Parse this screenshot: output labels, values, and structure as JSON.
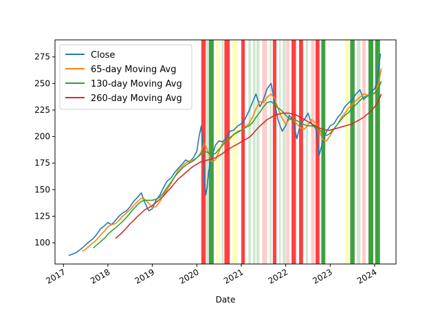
{
  "chart_data": {
    "type": "line",
    "xlabel": "Date",
    "ylabel": "",
    "title": "",
    "xlim": [
      2016.81,
      2024.48
    ],
    "ylim": [
      80,
      291
    ],
    "x_ticks": [
      {
        "value": 2017,
        "label": "2017"
      },
      {
        "value": 2018,
        "label": "2018"
      },
      {
        "value": 2019,
        "label": "2019"
      },
      {
        "value": 2020,
        "label": "2020"
      },
      {
        "value": 2021,
        "label": "2021"
      },
      {
        "value": 2022,
        "label": "2022"
      },
      {
        "value": 2023,
        "label": "2023"
      },
      {
        "value": 2024,
        "label": "2024"
      }
    ],
    "y_ticks": [
      {
        "value": 100,
        "label": "100"
      },
      {
        "value": 125,
        "label": "125"
      },
      {
        "value": 150,
        "label": "150"
      },
      {
        "value": 175,
        "label": "175"
      },
      {
        "value": 200,
        "label": "200"
      },
      {
        "value": 225,
        "label": "225"
      },
      {
        "value": 250,
        "label": "250"
      },
      {
        "value": 275,
        "label": "275"
      }
    ],
    "legend_position": "top-left",
    "regime_bands": [
      {
        "start": 2020.1,
        "end": 2020.2,
        "color": "#ff0000",
        "opacity": 0.75
      },
      {
        "start": 2020.21,
        "end": 2020.26,
        "color": "#008000",
        "opacity": 0.18
      },
      {
        "start": 2020.27,
        "end": 2020.38,
        "color": "#008000",
        "opacity": 0.75
      },
      {
        "start": 2020.43,
        "end": 2020.52,
        "color": "#ffff00",
        "opacity": 0.25
      },
      {
        "start": 2020.56,
        "end": 2020.6,
        "color": "#008000",
        "opacity": 0.18
      },
      {
        "start": 2020.62,
        "end": 2020.74,
        "color": "#ff0000",
        "opacity": 0.75
      },
      {
        "start": 2020.79,
        "end": 2020.92,
        "color": "#ffff00",
        "opacity": 0.25
      },
      {
        "start": 2021.0,
        "end": 2021.08,
        "color": "#ff0000",
        "opacity": 0.75
      },
      {
        "start": 2021.16,
        "end": 2021.22,
        "color": "#008000",
        "opacity": 0.18
      },
      {
        "start": 2021.26,
        "end": 2021.32,
        "color": "#008000",
        "opacity": 0.18
      },
      {
        "start": 2021.34,
        "end": 2021.41,
        "color": "#008000",
        "opacity": 0.18
      },
      {
        "start": 2021.47,
        "end": 2021.58,
        "color": "#ff0000",
        "opacity": 0.2
      },
      {
        "start": 2021.64,
        "end": 2021.68,
        "color": "#008000",
        "opacity": 0.18
      },
      {
        "start": 2021.71,
        "end": 2021.79,
        "color": "#ff0000",
        "opacity": 0.75
      },
      {
        "start": 2021.85,
        "end": 2021.89,
        "color": "#008000",
        "opacity": 0.18
      },
      {
        "start": 2021.93,
        "end": 2022.0,
        "color": "#008000",
        "opacity": 0.18
      },
      {
        "start": 2022.01,
        "end": 2022.08,
        "color": "#ff0000",
        "opacity": 0.2
      },
      {
        "start": 2022.13,
        "end": 2022.23,
        "color": "#ff0000",
        "opacity": 0.75
      },
      {
        "start": 2022.3,
        "end": 2022.39,
        "color": "#ff0000",
        "opacity": 0.75
      },
      {
        "start": 2022.45,
        "end": 2022.5,
        "color": "#008000",
        "opacity": 0.18
      },
      {
        "start": 2022.57,
        "end": 2022.65,
        "color": "#ff0000",
        "opacity": 0.2
      },
      {
        "start": 2022.67,
        "end": 2022.76,
        "color": "#ff0000",
        "opacity": 0.75
      },
      {
        "start": 2022.8,
        "end": 2022.89,
        "color": "#008000",
        "opacity": 0.75
      },
      {
        "start": 2023.34,
        "end": 2023.41,
        "color": "#ffff00",
        "opacity": 0.35
      },
      {
        "start": 2023.45,
        "end": 2023.55,
        "color": "#008000",
        "opacity": 0.75
      },
      {
        "start": 2023.6,
        "end": 2023.68,
        "color": "#008000",
        "opacity": 0.18
      },
      {
        "start": 2023.72,
        "end": 2023.8,
        "color": "#ff0000",
        "opacity": 0.2
      },
      {
        "start": 2023.86,
        "end": 2023.97,
        "color": "#008000",
        "opacity": 0.75
      },
      {
        "start": 2024.01,
        "end": 2024.12,
        "color": "#008000",
        "opacity": 0.75
      }
    ],
    "series": [
      {
        "name": "Close",
        "color": "#1f77b4",
        "x": [
          2017.12,
          2017.25,
          2017.33,
          2017.42,
          2017.5,
          2017.58,
          2017.67,
          2017.75,
          2017.83,
          2017.92,
          2018.0,
          2018.08,
          2018.17,
          2018.25,
          2018.33,
          2018.42,
          2018.5,
          2018.58,
          2018.67,
          2018.75,
          2018.83,
          2018.92,
          2019.0,
          2019.08,
          2019.17,
          2019.25,
          2019.33,
          2019.42,
          2019.5,
          2019.58,
          2019.67,
          2019.75,
          2019.83,
          2019.92,
          2020.0,
          2020.05,
          2020.1,
          2020.13,
          2020.17,
          2020.2,
          2020.23,
          2020.27,
          2020.33,
          2020.42,
          2020.5,
          2020.58,
          2020.67,
          2020.75,
          2020.83,
          2020.92,
          2021.0,
          2021.08,
          2021.17,
          2021.25,
          2021.33,
          2021.42,
          2021.5,
          2021.58,
          2021.67,
          2021.75,
          2021.83,
          2021.92,
          2022.0,
          2022.08,
          2022.17,
          2022.25,
          2022.33,
          2022.42,
          2022.5,
          2022.58,
          2022.67,
          2022.71,
          2022.75,
          2022.83,
          2022.92,
          2023.0,
          2023.08,
          2023.17,
          2023.25,
          2023.33,
          2023.42,
          2023.5,
          2023.58,
          2023.67,
          2023.75,
          2023.83,
          2023.92,
          2024.0,
          2024.05,
          2024.1,
          2024.13
        ],
        "y": [
          88,
          90,
          92,
          95,
          98,
          101,
          104,
          108,
          113,
          116,
          119,
          117,
          121,
          125,
          128,
          130,
          134,
          139,
          143,
          147,
          138,
          130,
          132,
          140,
          145,
          152,
          158,
          161,
          166,
          170,
          174,
          178,
          176,
          180,
          186,
          200,
          210,
          195,
          160,
          145,
          152,
          168,
          180,
          192,
          196,
          195,
          199,
          205,
          206,
          210,
          212,
          216,
          224,
          232,
          240,
          228,
          235,
          245,
          250,
          232,
          215,
          205,
          210,
          220,
          215,
          198,
          212,
          216,
          222,
          212,
          208,
          198,
          182,
          195,
          205,
          210,
          212,
          218,
          222,
          228,
          232,
          235,
          240,
          244,
          235,
          238,
          242,
          245,
          252,
          268,
          278
        ]
      },
      {
        "name": "65-day Moving Avg",
        "color": "#ff7f0e",
        "x": [
          2017.42,
          2017.5,
          2017.58,
          2017.67,
          2017.75,
          2017.83,
          2017.92,
          2018.0,
          2018.08,
          2018.17,
          2018.25,
          2018.33,
          2018.42,
          2018.5,
          2018.58,
          2018.67,
          2018.75,
          2018.83,
          2018.92,
          2019.0,
          2019.08,
          2019.17,
          2019.25,
          2019.33,
          2019.42,
          2019.5,
          2019.58,
          2019.67,
          2019.75,
          2019.83,
          2019.92,
          2020.0,
          2020.08,
          2020.17,
          2020.25,
          2020.33,
          2020.42,
          2020.5,
          2020.58,
          2020.67,
          2020.75,
          2020.83,
          2020.92,
          2021.0,
          2021.08,
          2021.17,
          2021.25,
          2021.33,
          2021.42,
          2021.5,
          2021.58,
          2021.67,
          2021.75,
          2021.83,
          2021.92,
          2022.0,
          2022.08,
          2022.17,
          2022.25,
          2022.33,
          2022.42,
          2022.5,
          2022.58,
          2022.67,
          2022.75,
          2022.83,
          2022.92,
          2023.0,
          2023.08,
          2023.17,
          2023.25,
          2023.33,
          2023.42,
          2023.5,
          2023.58,
          2023.67,
          2023.75,
          2023.83,
          2023.92,
          2024.0,
          2024.08,
          2024.15
        ],
        "y": [
          92,
          94,
          97,
          100,
          103,
          107,
          111,
          115,
          117,
          118,
          121,
          125,
          128,
          131,
          135,
          139,
          142,
          141,
          137,
          133,
          134,
          139,
          145,
          150,
          156,
          162,
          168,
          172,
          175,
          177,
          178,
          180,
          184,
          194,
          186,
          176,
          178,
          186,
          194,
          196,
          198,
          202,
          205,
          206,
          209,
          212,
          218,
          226,
          233,
          232,
          237,
          240,
          236,
          226,
          217,
          212,
          216,
          216,
          212,
          208,
          207,
          211,
          216,
          213,
          206,
          197,
          196,
          201,
          207,
          212,
          218,
          222,
          227,
          230,
          234,
          237,
          240,
          239,
          239,
          241,
          248,
          264
        ]
      },
      {
        "name": "130-day Moving Avg",
        "color": "#2ca02c",
        "x": [
          2017.67,
          2017.75,
          2017.83,
          2017.92,
          2018.0,
          2018.08,
          2018.17,
          2018.25,
          2018.33,
          2018.42,
          2018.5,
          2018.58,
          2018.67,
          2018.75,
          2018.83,
          2018.92,
          2019.0,
          2019.08,
          2019.17,
          2019.25,
          2019.33,
          2019.42,
          2019.5,
          2019.58,
          2019.67,
          2019.75,
          2019.83,
          2019.92,
          2020.0,
          2020.08,
          2020.17,
          2020.25,
          2020.33,
          2020.42,
          2020.5,
          2020.58,
          2020.67,
          2020.75,
          2020.83,
          2020.92,
          2021.0,
          2021.08,
          2021.17,
          2021.25,
          2021.33,
          2021.42,
          2021.5,
          2021.58,
          2021.67,
          2021.75,
          2021.83,
          2021.92,
          2022.0,
          2022.08,
          2022.17,
          2022.25,
          2022.33,
          2022.42,
          2022.5,
          2022.58,
          2022.67,
          2022.75,
          2022.83,
          2022.92,
          2023.0,
          2023.08,
          2023.17,
          2023.25,
          2023.33,
          2023.42,
          2023.5,
          2023.58,
          2023.67,
          2023.75,
          2023.83,
          2023.92,
          2024.0,
          2024.08,
          2024.15
        ],
        "y": [
          95,
          98,
          101,
          104,
          108,
          111,
          114,
          117,
          120,
          124,
          128,
          132,
          136,
          139,
          140,
          140,
          140,
          141,
          143,
          147,
          152,
          157,
          162,
          166,
          170,
          173,
          175,
          177,
          180,
          183,
          186,
          185,
          183,
          184,
          188,
          192,
          196,
          199,
          202,
          204,
          206,
          208,
          210,
          213,
          218,
          223,
          228,
          232,
          233,
          230,
          227,
          224,
          220,
          217,
          216,
          215,
          213,
          211,
          210,
          210,
          209,
          207,
          203,
          201,
          203,
          207,
          212,
          216,
          220,
          223,
          227,
          230,
          234,
          237,
          238,
          239,
          241,
          245,
          252
        ]
      },
      {
        "name": "260-day Moving Avg",
        "color": "#d62728",
        "x": [
          2018.17,
          2018.25,
          2018.33,
          2018.42,
          2018.5,
          2018.58,
          2018.67,
          2018.75,
          2018.83,
          2018.92,
          2019.0,
          2019.08,
          2019.17,
          2019.25,
          2019.33,
          2019.42,
          2019.5,
          2019.58,
          2019.67,
          2019.75,
          2019.83,
          2019.92,
          2020.0,
          2020.08,
          2020.17,
          2020.25,
          2020.33,
          2020.42,
          2020.5,
          2020.58,
          2020.67,
          2020.75,
          2020.83,
          2020.92,
          2021.0,
          2021.08,
          2021.17,
          2021.25,
          2021.33,
          2021.42,
          2021.5,
          2021.58,
          2021.67,
          2021.75,
          2021.83,
          2021.92,
          2022.0,
          2022.08,
          2022.17,
          2022.25,
          2022.33,
          2022.42,
          2022.5,
          2022.58,
          2022.67,
          2022.75,
          2022.83,
          2022.92,
          2023.0,
          2023.08,
          2023.17,
          2023.25,
          2023.33,
          2023.42,
          2023.5,
          2023.58,
          2023.67,
          2023.75,
          2023.83,
          2023.92,
          2024.0,
          2024.08,
          2024.15
        ],
        "y": [
          104,
          107,
          110,
          114,
          118,
          121,
          125,
          128,
          131,
          133,
          135,
          138,
          141,
          144,
          148,
          152,
          156,
          160,
          163,
          166,
          169,
          172,
          174,
          176,
          177,
          178,
          179,
          180,
          182,
          184,
          187,
          189,
          191,
          193,
          195,
          197,
          199,
          202,
          206,
          210,
          213,
          216,
          218,
          220,
          221,
          222,
          222,
          222,
          221,
          220,
          218,
          216,
          214,
          212,
          210,
          208,
          207,
          206,
          206,
          207,
          208,
          209,
          210,
          211,
          212,
          214,
          216,
          218,
          221,
          224,
          228,
          233,
          240
        ]
      }
    ]
  }
}
